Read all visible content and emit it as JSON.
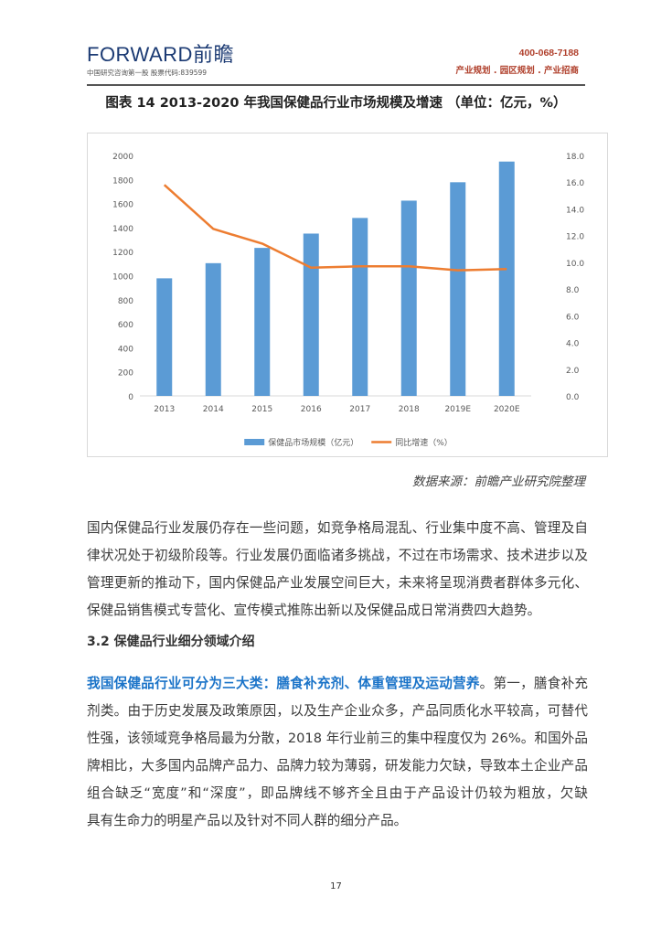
{
  "header": {
    "logo_text": "FORWARD前瞻",
    "logo_subtitle": "中国研究咨询第一股  股票代码:839599",
    "phone": "400-068-7188",
    "slogan": "产业规划 . 园区规划 . 产业招商"
  },
  "figure": {
    "caption": "图表 14 2013-2020 年我国保健品行业市场规模及增速 （单位：亿元，%）",
    "source": "数据来源：前瞻产业研究院整理"
  },
  "chart_data": {
    "type": "bar+line",
    "categories": [
      "2013",
      "2014",
      "2015",
      "2016",
      "2017",
      "2018",
      "2019E",
      "2020E"
    ],
    "series": [
      {
        "name": "保健品市场规模（亿元）",
        "type": "bar",
        "axis": "left",
        "color": "#5b9bd5",
        "values": [
          978,
          1104,
          1231,
          1350,
          1480,
          1624,
          1777,
          1949
        ]
      },
      {
        "name": "同比增速（%）",
        "type": "line",
        "axis": "right",
        "color": "#ed7d31",
        "values": [
          15.8,
          12.5,
          11.4,
          9.6,
          9.7,
          9.7,
          9.4,
          9.5
        ]
      }
    ],
    "y_left": {
      "range": [
        0,
        2000
      ],
      "ticks": [
        "0",
        "200",
        "400",
        "600",
        "800",
        "1000",
        "1200",
        "1400",
        "1600",
        "1800",
        "2000"
      ]
    },
    "y_right": {
      "range": [
        0,
        18
      ],
      "ticks": [
        "0.0",
        "2.0",
        "4.0",
        "6.0",
        "8.0",
        "10.0",
        "12.0",
        "14.0",
        "16.0",
        "18.0"
      ]
    },
    "grid": false,
    "legend": "bottom"
  },
  "body": {
    "para1_lines": [
      "国内保健品行业发展仍存在一些问题，如竞争格局混乱、行业集中度不高、管理及自",
      "律状况处于初级阶段等。行业发展仍面临诸多挑战，不过在市场需求、技术进步以及",
      "管理更新的推动下，国内保健品产业发展空间巨大，未来将呈现消费者群体多元化、",
      "保健品销售模式专营化、宣传模式推陈出新以及保健品成日常消费四大趋势。"
    ],
    "section_heading": "3.2  保健品行业细分领域介绍",
    "para2_highlight": "我国保健品行业可分为三大类：膳食补充剂、体重管理及运动营养",
    "para2_first_rest": "。第一，膳食补充",
    "para2_lines": [
      "剂类。由于历史发展及政策原因，以及生产企业众多，产品同质化水平较高，可替代",
      "性强，该领域竞争格局最为分散，2018 年行业前三的集中程度仅为 26%。和国外品",
      "牌相比，大多国内品牌产品力、品牌力较为薄弱，研发能力欠缺，导致本土企业产品",
      "组合缺乏“宽度”和“深度”，即品牌线不够齐全且由于产品设计仍较为粗放，欠缺",
      "具有生命力的明星产品以及针对不同人群的细分产品。"
    ]
  },
  "footer": {
    "page_number": "17"
  }
}
